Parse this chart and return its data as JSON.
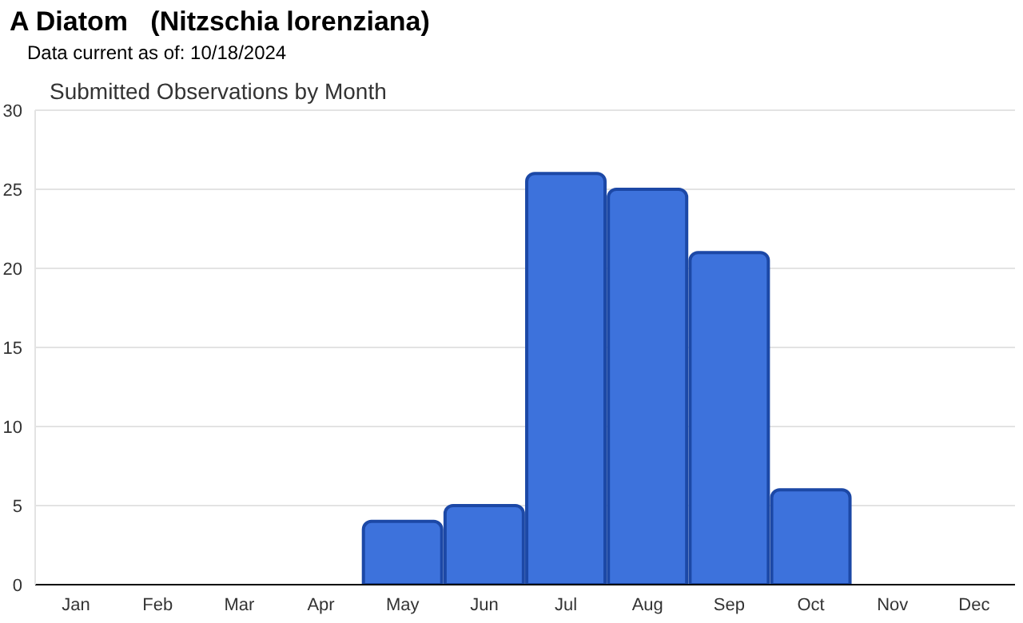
{
  "chart_data": {
    "type": "bar",
    "title": "A Diatom   (Nitzschia lorenziana)",
    "subtitle": "Data current as of: 10/18/2024",
    "annotations": [
      "Submitted Observations by Month"
    ],
    "categories": [
      "Jan",
      "Feb",
      "Mar",
      "Apr",
      "May",
      "Jun",
      "Jul",
      "Aug",
      "Sep",
      "Oct",
      "Nov",
      "Dec"
    ],
    "values": [
      0,
      0,
      0,
      0,
      4,
      5,
      26,
      25,
      21,
      6,
      0,
      0
    ],
    "color": "#3d72dc",
    "ylim": [
      0,
      30
    ],
    "yticks": [
      0,
      5,
      10,
      15,
      20,
      25,
      30
    ],
    "grid": "y"
  }
}
